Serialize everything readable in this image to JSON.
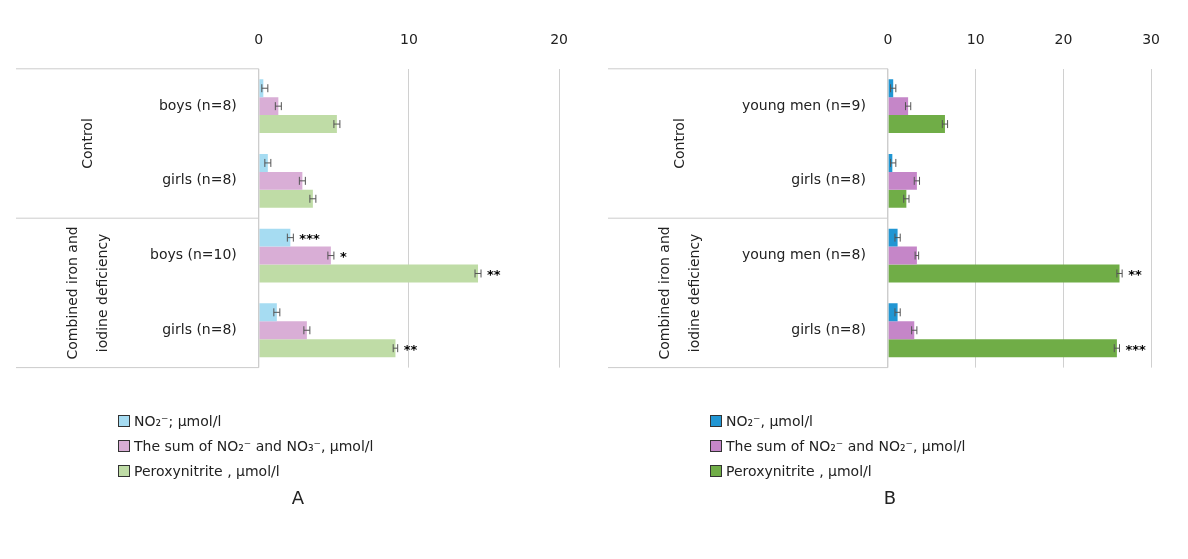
{
  "chart_data": [
    {
      "type": "bar",
      "orientation": "horizontal",
      "title": "A",
      "categories": [
        "boys (n=8)",
        "girls (n=8)",
        "boys (n=10)",
        "girls (n=8)"
      ],
      "annotations": [
        "Control",
        "Combined iron and iodine deficiency"
      ],
      "xlim": [
        0,
        20
      ],
      "xticks": [
        0,
        10,
        20
      ],
      "grid": "x",
      "legend": "bottom",
      "series": [
        {
          "name": "NO₂⁻; µmol/l",
          "color": "#a6dcf2",
          "values": [
            0.3,
            0.6,
            2.1,
            1.2
          ],
          "errors": [
            [
              0.2,
              0.6
            ],
            0.2,
            0.2,
            0.2
          ],
          "value_labels": [
            null,
            null,
            "***",
            null
          ]
        },
        {
          "name": "The sum of NO₂⁻ and NO₃⁻, µmol/l",
          "color": "#d9aed6",
          "values": [
            1.3,
            2.9,
            4.8,
            3.2
          ],
          "errors": [
            0.2,
            0.2,
            0.2,
            0.2
          ],
          "value_labels": [
            null,
            null,
            "*",
            null
          ]
        },
        {
          "name": "Peroxynitrite , µmol/l",
          "color": "#bfdca6",
          "values": [
            5.2,
            3.6,
            14.6,
            9.1
          ],
          "errors": [
            0.2,
            0.2,
            0.2,
            0.15
          ],
          "value_labels": [
            null,
            null,
            "**",
            "**"
          ]
        }
      ]
    },
    {
      "type": "bar",
      "orientation": "horizontal",
      "title": "B",
      "categories": [
        "young men (n=9)",
        "girls (n=8)",
        "young men (n=8)",
        "girls (n=8)"
      ],
      "annotations": [
        "Control",
        "Combined iron and iodine deficiency"
      ],
      "xlim": [
        0,
        30
      ],
      "xticks": [
        0,
        10,
        20,
        30
      ],
      "grid": "x",
      "legend": "bottom",
      "series": [
        {
          "name": "NO₂⁻, µmol/l",
          "color": "#2196d3",
          "values": [
            0.6,
            0.5,
            1.1,
            1.1
          ],
          "errors": [
            0.3,
            [
              0.3,
              0.9
            ],
            0.3,
            0.3
          ],
          "value_labels": [
            null,
            null,
            null,
            null
          ]
        },
        {
          "name": "The sum of NO₂⁻ and NO₂⁻, µmol/l",
          "color": "#c586c8",
          "values": [
            2.3,
            3.3,
            3.3,
            3.0
          ],
          "errors": [
            0.3,
            0.3,
            0.2,
            0.3
          ],
          "value_labels": [
            null,
            null,
            null,
            null
          ]
        },
        {
          "name": "Peroxynitrite , µmol/l",
          "color": "#70ad47",
          "values": [
            6.5,
            2.1,
            26.4,
            26.1
          ],
          "errors": [
            0.3,
            0.3,
            0.3,
            0.3
          ],
          "value_labels": [
            null,
            null,
            "**",
            "***"
          ]
        }
      ]
    }
  ]
}
